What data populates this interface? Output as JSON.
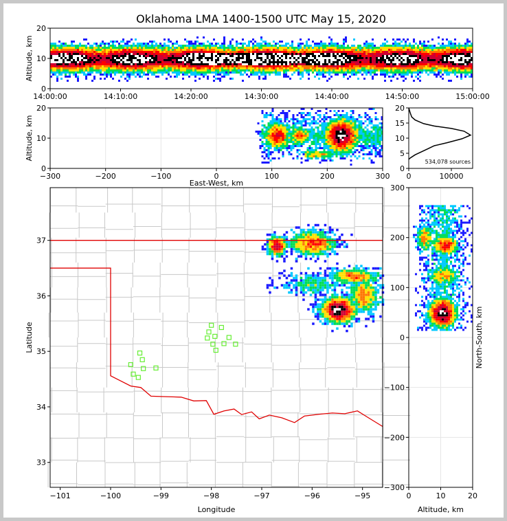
{
  "title": "Oklahoma LMA 1400-1500 UTC May 15, 2020",
  "colors": {
    "state_border": "#e00000",
    "county_line": "#c8c8c8",
    "station": "#66ee33",
    "density_scale": [
      "#1a1aff",
      "#00c8ff",
      "#00dd55",
      "#ffe000",
      "#ff7700",
      "#ff0000",
      "#cc0033",
      "#000000",
      "#ffffff"
    ]
  },
  "chart_data": [
    {
      "id": "time-height",
      "type": "heatmap",
      "xlabel": "",
      "ylabel": "Altitude, km",
      "xlim": [
        "14:00:00",
        "15:00:00"
      ],
      "ylim": [
        0,
        20
      ],
      "x_ticks": [
        "14:00:00",
        "14:10:00",
        "14:20:00",
        "14:30:00",
        "14:40:00",
        "14:50:00",
        "15:00:00"
      ],
      "y_ticks": [
        0,
        10,
        20
      ]
    },
    {
      "id": "ew-altitude",
      "type": "heatmap",
      "xlabel": "East-West, km",
      "ylabel": "Altitude, km",
      "xlim": [
        -300,
        300
      ],
      "ylim": [
        0,
        20
      ],
      "x_ticks": [
        -300,
        -200,
        -100,
        0,
        100,
        200,
        300
      ],
      "y_ticks": [
        0,
        10,
        20
      ]
    },
    {
      "id": "altitude-histogram",
      "type": "line",
      "annotation": "534,078 sources",
      "xlim": [
        0,
        15000
      ],
      "ylim": [
        0,
        20
      ],
      "x_ticks": [
        0,
        10000
      ],
      "y_ticks": [
        0,
        5,
        10,
        15,
        20
      ],
      "x": [
        0,
        400,
        1500,
        3000,
        4500,
        6000,
        9000,
        12500,
        14500,
        13000,
        10000,
        6000,
        3500,
        1500,
        700,
        300,
        0
      ],
      "y": [
        3,
        3.5,
        4.5,
        5.5,
        6.5,
        7.5,
        8.5,
        9.8,
        11,
        12.3,
        13.2,
        14,
        14.8,
        16,
        17,
        18.5,
        20
      ]
    },
    {
      "id": "plan-view",
      "type": "scatter",
      "xlabel": "Longitude",
      "ylabel": "Latitude",
      "xlim": [
        -101.2,
        -94.6
      ],
      "ylim": [
        32.55,
        37.95
      ],
      "x_ticks": [
        -101,
        -100,
        -99,
        -98,
        -97,
        -96,
        -95
      ],
      "y_ticks": [
        33,
        34,
        35,
        36,
        37
      ],
      "stations": [
        [
          -98.0,
          35.47
        ],
        [
          -97.8,
          35.43
        ],
        [
          -98.05,
          35.35
        ],
        [
          -97.93,
          35.27
        ],
        [
          -98.08,
          35.24
        ],
        [
          -97.65,
          35.25
        ],
        [
          -97.97,
          35.13
        ],
        [
          -97.75,
          35.14
        ],
        [
          -97.52,
          35.13
        ],
        [
          -97.91,
          35.02
        ],
        [
          -99.42,
          34.97
        ],
        [
          -99.37,
          34.85
        ],
        [
          -99.6,
          34.76
        ],
        [
          -99.35,
          34.69
        ],
        [
          -99.1,
          34.7
        ],
        [
          -99.55,
          34.59
        ],
        [
          -99.45,
          34.53
        ]
      ]
    },
    {
      "id": "altitude-ns",
      "type": "heatmap",
      "xlabel": "Altitude, km",
      "ylabel": "North-South, km",
      "xlim": [
        0,
        20
      ],
      "ylim": [
        -300,
        300
      ],
      "x_ticks": [
        0,
        10,
        20
      ],
      "y_ticks": [
        -300,
        -200,
        -100,
        0,
        100,
        200,
        300
      ]
    }
  ]
}
